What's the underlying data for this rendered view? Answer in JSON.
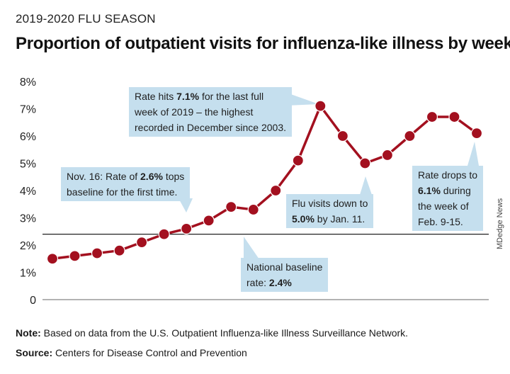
{
  "header": {
    "kicker": "2019-2020 FLU SEASON",
    "title": "Proportion of outpatient visits for influenza-like illness by week"
  },
  "colors": {
    "series": "#a3101f",
    "annotation_bg": "#c5dfee",
    "baseline": "#222222",
    "axis": "#9a9a9a"
  },
  "chart_data": {
    "type": "line",
    "title": "Proportion of outpatient visits for influenza-like illness by week",
    "xlabel": "",
    "ylabel": "",
    "ylim": [
      0,
      8
    ],
    "yticks": [
      "0",
      "1%",
      "2%",
      "3%",
      "4%",
      "5%",
      "6%",
      "7%",
      "8%"
    ],
    "grid": false,
    "baseline": 2.4,
    "series": [
      {
        "values": [
          1.5,
          1.6,
          1.7,
          1.8,
          2.1,
          2.4,
          2.6,
          2.9,
          3.4,
          3.3,
          4.0,
          5.1,
          7.1,
          6.0,
          5.0,
          5.3,
          6.0,
          6.7,
          6.7,
          6.1
        ]
      }
    ]
  },
  "annotations": {
    "peak": {
      "pre": "Rate hits ",
      "bold1": "7.1%",
      "mid1": " for the last full",
      "line2": "week of 2019 – the highest",
      "line3": "recorded in December since 2003."
    },
    "nov": {
      "pre": "Nov. 16: Rate of ",
      "bold1": "2.6%",
      "post": " tops",
      "line2": "baseline for the first time."
    },
    "jan": {
      "line1": "Flu visits down to",
      "bold1": "5.0%",
      "post": " by Jan. 11."
    },
    "feb": {
      "line1": "Rate drops to",
      "bold1": "6.1%",
      "post": " during",
      "line3": "the week of",
      "line4": "Feb. 9-15."
    },
    "baseline": {
      "line1": "National baseline",
      "pre": "rate: ",
      "bold1": "2.4%"
    }
  },
  "credit": "MDedge News",
  "footer": {
    "note_label": "Note:",
    "note_text": " Based on data from the U.S. Outpatient Influenza-like Illness Surveillance Network.",
    "source_label": "Source:",
    "source_text": " Centers for Disease Control and Prevention"
  }
}
